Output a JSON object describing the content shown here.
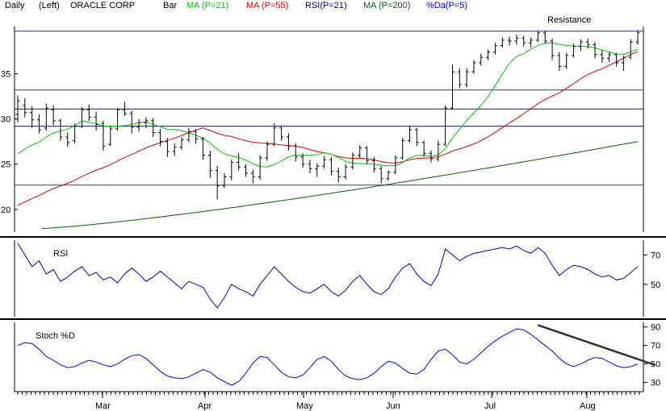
{
  "header": {
    "period": "Daily",
    "scale": "(Left)",
    "symbol_name": "ORACLE CORP",
    "legend": [
      {
        "label": "Bar",
        "color": "#000000"
      },
      {
        "label": "MA (P=21)",
        "color": "#00c800"
      },
      {
        "label": "MA (P=55)",
        "color": "#e00000"
      },
      {
        "label": "RSI(P=21)",
        "color": "#0000c0"
      },
      {
        "label": "MA (P=200)",
        "color": "#006400"
      },
      {
        "label": "%Da(P=5)",
        "color": "#0000ff"
      }
    ]
  },
  "colors": {
    "price_bar": "#000000",
    "ma21": "#00c800",
    "ma55": "#e00000",
    "ma200": "#006400",
    "support_resistance": "#3333cc",
    "rsi": "#0000c0",
    "stoch": "#0000ff",
    "trendline": "#303030"
  },
  "chart_data": [
    {
      "type": "bar",
      "panel": "price",
      "x_labels": [
        "Mar",
        "Apr",
        "May",
        "Jun",
        "Jul",
        "Aug"
      ],
      "y_ticks": [
        20,
        25,
        30,
        35
      ],
      "ylim": [
        17.5,
        40.2
      ],
      "grid": false,
      "annotation": "Resistance",
      "horizontal_levels": [
        39.7,
        33.2,
        31.1,
        29.2,
        22.7
      ],
      "ohlc_sampled_every_2_days": [
        [
          30.5,
          32.6,
          29.6,
          32.0
        ],
        [
          31.5,
          32.3,
          30.2,
          30.7
        ],
        [
          30.7,
          31.4,
          29.0,
          29.9
        ],
        [
          29.9,
          30.5,
          28.4,
          28.8
        ],
        [
          29.0,
          31.7,
          28.7,
          31.2
        ],
        [
          31.0,
          31.5,
          29.3,
          29.8
        ],
        [
          29.8,
          30.0,
          27.6,
          28.0
        ],
        [
          28.0,
          28.5,
          26.9,
          27.4
        ],
        [
          27.6,
          29.5,
          27.3,
          29.2
        ],
        [
          29.2,
          31.3,
          29.0,
          31.0
        ],
        [
          31.0,
          31.6,
          29.8,
          30.2
        ],
        [
          30.2,
          30.8,
          28.7,
          29.4
        ],
        [
          29.5,
          29.8,
          26.5,
          27.0
        ],
        [
          27.2,
          29.2,
          27.0,
          28.9
        ],
        [
          28.9,
          31.2,
          28.7,
          31.0
        ],
        [
          31.0,
          31.9,
          30.3,
          30.6
        ],
        [
          30.6,
          30.9,
          28.4,
          29.1
        ],
        [
          29.1,
          30.0,
          28.6,
          29.6
        ],
        [
          29.6,
          30.2,
          29.0,
          29.8
        ],
        [
          29.8,
          30.1,
          28.0,
          28.5
        ],
        [
          28.5,
          28.9,
          27.0,
          27.5
        ],
        [
          27.5,
          27.9,
          25.8,
          26.4
        ],
        [
          26.4,
          27.3,
          25.9,
          26.9
        ],
        [
          26.9,
          28.0,
          26.6,
          27.7
        ],
        [
          27.7,
          29.0,
          27.4,
          28.6
        ],
        [
          28.6,
          28.9,
          27.3,
          27.8
        ],
        [
          27.8,
          28.0,
          25.5,
          26.0
        ],
        [
          26.0,
          26.5,
          23.5,
          24.3
        ],
        [
          24.3,
          24.8,
          21.1,
          22.6
        ],
        [
          22.6,
          24.0,
          22.4,
          23.6
        ],
        [
          23.6,
          25.5,
          23.2,
          25.2
        ],
        [
          25.2,
          26.2,
          24.3,
          24.7
        ],
        [
          24.7,
          25.0,
          23.6,
          24.0
        ],
        [
          24.0,
          24.4,
          22.9,
          23.6
        ],
        [
          23.6,
          26.0,
          23.3,
          25.7
        ],
        [
          25.7,
          27.5,
          25.4,
          27.2
        ],
        [
          27.2,
          29.5,
          27.0,
          29.0
        ],
        [
          29.0,
          29.3,
          27.6,
          28.0
        ],
        [
          28.0,
          28.4,
          26.5,
          27.0
        ],
        [
          27.0,
          27.3,
          25.3,
          25.8
        ],
        [
          25.8,
          26.2,
          24.6,
          25.0
        ],
        [
          25.0,
          25.5,
          24.0,
          24.5
        ],
        [
          24.5,
          25.1,
          23.6,
          24.8
        ],
        [
          24.8,
          25.9,
          24.5,
          25.5
        ],
        [
          25.5,
          25.8,
          23.8,
          24.2
        ],
        [
          24.2,
          24.6,
          23.0,
          23.6
        ],
        [
          23.6,
          25.0,
          23.3,
          24.7
        ],
        [
          24.7,
          26.3,
          24.4,
          26.0
        ],
        [
          26.0,
          27.1,
          25.7,
          26.8
        ],
        [
          26.8,
          27.0,
          25.0,
          25.4
        ],
        [
          25.4,
          25.8,
          24.1,
          24.5
        ],
        [
          24.5,
          24.8,
          22.9,
          23.4
        ],
        [
          23.4,
          24.3,
          23.2,
          24.1
        ],
        [
          24.1,
          26.0,
          23.9,
          25.7
        ],
        [
          25.7,
          27.9,
          25.5,
          27.6
        ],
        [
          27.6,
          29.2,
          27.4,
          28.8
        ],
        [
          28.8,
          29.0,
          27.0,
          27.4
        ],
        [
          27.4,
          27.6,
          25.8,
          26.2
        ],
        [
          26.2,
          26.5,
          25.2,
          25.6
        ],
        [
          25.6,
          27.6,
          25.3,
          27.2
        ],
        [
          27.2,
          31.5,
          27.0,
          31.2
        ],
        [
          31.2,
          36.0,
          31.0,
          35.2
        ],
        [
          35.2,
          35.6,
          33.4,
          33.8
        ],
        [
          33.8,
          35.6,
          33.5,
          35.2
        ],
        [
          35.2,
          36.5,
          35.0,
          36.2
        ],
        [
          36.2,
          37.2,
          35.9,
          36.8
        ],
        [
          36.8,
          37.7,
          36.5,
          37.4
        ],
        [
          37.4,
          38.4,
          37.1,
          38.1
        ],
        [
          38.1,
          39.0,
          37.9,
          38.7
        ],
        [
          38.7,
          39.1,
          38.1,
          38.6
        ],
        [
          38.6,
          39.3,
          38.2,
          38.9
        ],
        [
          38.9,
          39.2,
          38.0,
          38.4
        ],
        [
          38.4,
          39.0,
          37.9,
          38.7
        ],
        [
          38.7,
          39.8,
          38.5,
          39.5
        ],
        [
          39.5,
          39.7,
          38.3,
          38.6
        ],
        [
          38.6,
          38.9,
          36.5,
          37.0
        ],
        [
          37.0,
          37.4,
          35.3,
          35.8
        ],
        [
          35.8,
          37.3,
          35.5,
          37.0
        ],
        [
          37.0,
          38.3,
          36.8,
          38.0
        ],
        [
          38.0,
          38.8,
          37.5,
          38.5
        ],
        [
          38.5,
          38.9,
          37.8,
          38.2
        ],
        [
          38.2,
          38.5,
          36.7,
          37.1
        ],
        [
          37.1,
          37.6,
          36.2,
          36.7
        ],
        [
          36.7,
          37.4,
          36.3,
          37.1
        ],
        [
          37.1,
          37.3,
          35.8,
          36.2
        ],
        [
          36.2,
          37.0,
          35.3,
          36.8
        ],
        [
          36.8,
          38.8,
          36.6,
          38.5
        ],
        [
          38.5,
          39.8,
          38.2,
          39.5
        ]
      ]
    },
    {
      "type": "line",
      "panel": "rsi",
      "title": "RSI",
      "y_ticks": [
        50,
        70
      ],
      "ylim": [
        28,
        80
      ],
      "values": [
        78,
        70,
        62,
        66,
        57,
        60,
        52,
        55,
        59,
        62,
        56,
        58,
        53,
        55,
        51,
        57,
        61,
        57,
        52,
        55,
        59,
        55,
        51,
        47,
        52,
        50,
        48,
        40,
        34,
        41,
        50,
        47,
        45,
        42,
        50,
        56,
        62,
        57,
        52,
        48,
        45,
        44,
        47,
        50,
        45,
        42,
        46,
        52,
        56,
        50,
        45,
        43,
        47,
        55,
        61,
        64,
        57,
        52,
        49,
        57,
        74,
        70,
        66,
        69,
        71,
        72,
        73,
        74,
        75,
        74,
        76,
        73,
        71,
        75,
        71,
        63,
        56,
        60,
        63,
        62,
        60,
        57,
        55,
        56,
        53,
        54,
        58,
        62
      ]
    },
    {
      "type": "line",
      "panel": "stoch",
      "title": "Stoch %D",
      "y_ticks": [
        30,
        50,
        70,
        90
      ],
      "ylim": [
        20,
        95
      ],
      "values": [
        70,
        73,
        72,
        66,
        58,
        54,
        49,
        46,
        47,
        51,
        54,
        52,
        49,
        47,
        50,
        55,
        59,
        60,
        56,
        49,
        42,
        37,
        35,
        34,
        36,
        40,
        44,
        41,
        35,
        31,
        27,
        31,
        40,
        51,
        58,
        57,
        49,
        41,
        36,
        35,
        38,
        46,
        55,
        58,
        53,
        44,
        37,
        34,
        33,
        35,
        40,
        47,
        53,
        51,
        45,
        40,
        39,
        44,
        55,
        64,
        66,
        60,
        52,
        50,
        55,
        62,
        69,
        75,
        80,
        84,
        88,
        87,
        82,
        76,
        70,
        64,
        56,
        50,
        47,
        50,
        54,
        57,
        56,
        52,
        48,
        46,
        47,
        50
      ],
      "trendline": {
        "from": [
          73,
          92
        ],
        "to": [
          88,
          49
        ]
      }
    }
  ]
}
